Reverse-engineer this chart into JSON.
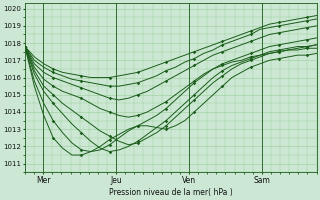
{
  "bg_color": "#cce8d4",
  "grid_color": "#99cc99",
  "line_color": "#1a5c1a",
  "xlabel": "Pression niveau de la mer( hPa )",
  "yticks": [
    1011,
    1012,
    1013,
    1014,
    1015,
    1016,
    1017,
    1018,
    1019,
    1020
  ],
  "xtick_labels": [
    "Mer",
    "Jeu",
    "Ven",
    "Sam"
  ],
  "xtick_positions": [
    12,
    60,
    108,
    156
  ],
  "ylim": [
    1010.5,
    1020.3
  ],
  "xlim": [
    0,
    192
  ],
  "series": [
    [
      1017.8,
      1017.2,
      1016.8,
      1016.5,
      1016.3,
      1016.2,
      1016.1,
      1016.0,
      1016.0,
      1016.0,
      1016.1,
      1016.2,
      1016.3,
      1016.5,
      1016.7,
      1016.9,
      1017.1,
      1017.3,
      1017.5,
      1017.7,
      1017.9,
      1018.1,
      1018.3,
      1018.5,
      1018.7,
      1018.9,
      1019.1,
      1019.2,
      1019.3,
      1019.4,
      1019.5,
      1019.6
    ],
    [
      1017.8,
      1017.0,
      1016.6,
      1016.3,
      1016.1,
      1015.9,
      1015.8,
      1015.7,
      1015.6,
      1015.5,
      1015.5,
      1015.6,
      1015.7,
      1015.9,
      1016.1,
      1016.4,
      1016.6,
      1016.9,
      1017.1,
      1017.4,
      1017.6,
      1017.9,
      1018.1,
      1018.3,
      1018.5,
      1018.8,
      1018.9,
      1019.0,
      1019.1,
      1019.2,
      1019.3,
      1019.4
    ],
    [
      1017.8,
      1016.8,
      1016.3,
      1016.0,
      1015.8,
      1015.6,
      1015.4,
      1015.2,
      1015.0,
      1014.8,
      1014.7,
      1014.8,
      1015.0,
      1015.2,
      1015.5,
      1015.8,
      1016.1,
      1016.4,
      1016.7,
      1017.0,
      1017.3,
      1017.5,
      1017.7,
      1017.9,
      1018.1,
      1018.3,
      1018.5,
      1018.6,
      1018.7,
      1018.8,
      1018.9,
      1019.0
    ],
    [
      1017.8,
      1016.6,
      1015.9,
      1015.5,
      1015.2,
      1015.0,
      1014.8,
      1014.5,
      1014.2,
      1014.0,
      1013.8,
      1013.7,
      1013.8,
      1014.0,
      1014.3,
      1014.6,
      1015.0,
      1015.4,
      1015.8,
      1016.2,
      1016.5,
      1016.8,
      1017.0,
      1017.2,
      1017.4,
      1017.6,
      1017.8,
      1017.9,
      1018.0,
      1018.1,
      1018.2,
      1018.3
    ],
    [
      1017.8,
      1016.4,
      1015.5,
      1015.0,
      1014.5,
      1014.1,
      1013.7,
      1013.3,
      1012.9,
      1012.6,
      1012.3,
      1012.1,
      1012.2,
      1012.5,
      1012.8,
      1013.2,
      1013.7,
      1014.2,
      1014.7,
      1015.2,
      1015.7,
      1016.1,
      1016.5,
      1016.8,
      1017.0,
      1017.2,
      1017.4,
      1017.5,
      1017.6,
      1017.7,
      1017.8,
      1017.9
    ],
    [
      1017.8,
      1016.2,
      1015.2,
      1014.5,
      1013.9,
      1013.3,
      1012.8,
      1012.3,
      1011.9,
      1011.7,
      1011.8,
      1012.0,
      1012.3,
      1012.7,
      1013.1,
      1013.5,
      1014.0,
      1014.5,
      1015.0,
      1015.5,
      1016.0,
      1016.4,
      1016.7,
      1016.9,
      1017.1,
      1017.3,
      1017.5,
      1017.6,
      1017.7,
      1017.8,
      1017.8,
      1017.9
    ],
    [
      1017.8,
      1015.8,
      1014.5,
      1013.5,
      1012.8,
      1012.2,
      1011.8,
      1011.7,
      1011.8,
      1012.1,
      1012.5,
      1012.9,
      1013.2,
      1013.5,
      1013.8,
      1014.2,
      1014.7,
      1015.2,
      1015.7,
      1016.1,
      1016.5,
      1016.7,
      1016.9,
      1017.0,
      1017.2,
      1017.3,
      1017.4,
      1017.5,
      1017.6,
      1017.6,
      1017.7,
      1017.7
    ],
    [
      1017.8,
      1015.5,
      1013.8,
      1012.5,
      1011.9,
      1011.5,
      1011.5,
      1011.7,
      1012.0,
      1012.4,
      1012.7,
      1013.0,
      1013.2,
      1013.2,
      1013.1,
      1013.0,
      1013.2,
      1013.5,
      1014.0,
      1014.5,
      1015.0,
      1015.5,
      1016.0,
      1016.3,
      1016.6,
      1016.8,
      1017.0,
      1017.1,
      1017.2,
      1017.3,
      1017.3,
      1017.4
    ]
  ]
}
